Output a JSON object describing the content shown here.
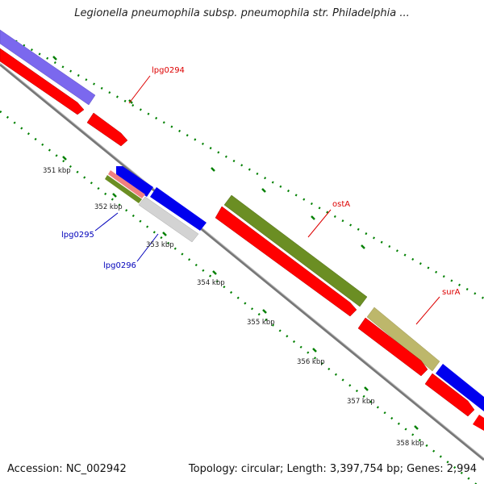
{
  "title": "Legionella pneumophila subsp. pneumophila str. Philadelphia ...",
  "footer": {
    "accession": "Accession: NC_002942",
    "summary": "Topology: circular; Length: 3,397,754 bp; Genes: 2,994"
  },
  "ticks": [
    "351 kbp",
    "352 kbp",
    "353 kbp",
    "354 kbp",
    "355 kbp",
    "356 kbp",
    "357 kbp",
    "358 kbp"
  ],
  "genes": [
    {
      "label": "lpg0294",
      "color": "#dd0000"
    },
    {
      "label": "lpg0295",
      "color": "#0000bb"
    },
    {
      "label": "lpg0296",
      "color": "#0000bb"
    },
    {
      "label": "ostA",
      "color": "#dd0000"
    },
    {
      "label": "surA",
      "color": "#dd0000"
    }
  ],
  "colors": {
    "cds": "#ff0000",
    "forward": "#0000ff",
    "cog_purple": "#7b68ee",
    "cog_olive": "#6b8e23",
    "cog_khaki": "#bdb76b",
    "cog_grey": "#d3d3d3",
    "cog_pink": "#f08080",
    "backbone": "#888888",
    "tick_marks": "#008000"
  }
}
